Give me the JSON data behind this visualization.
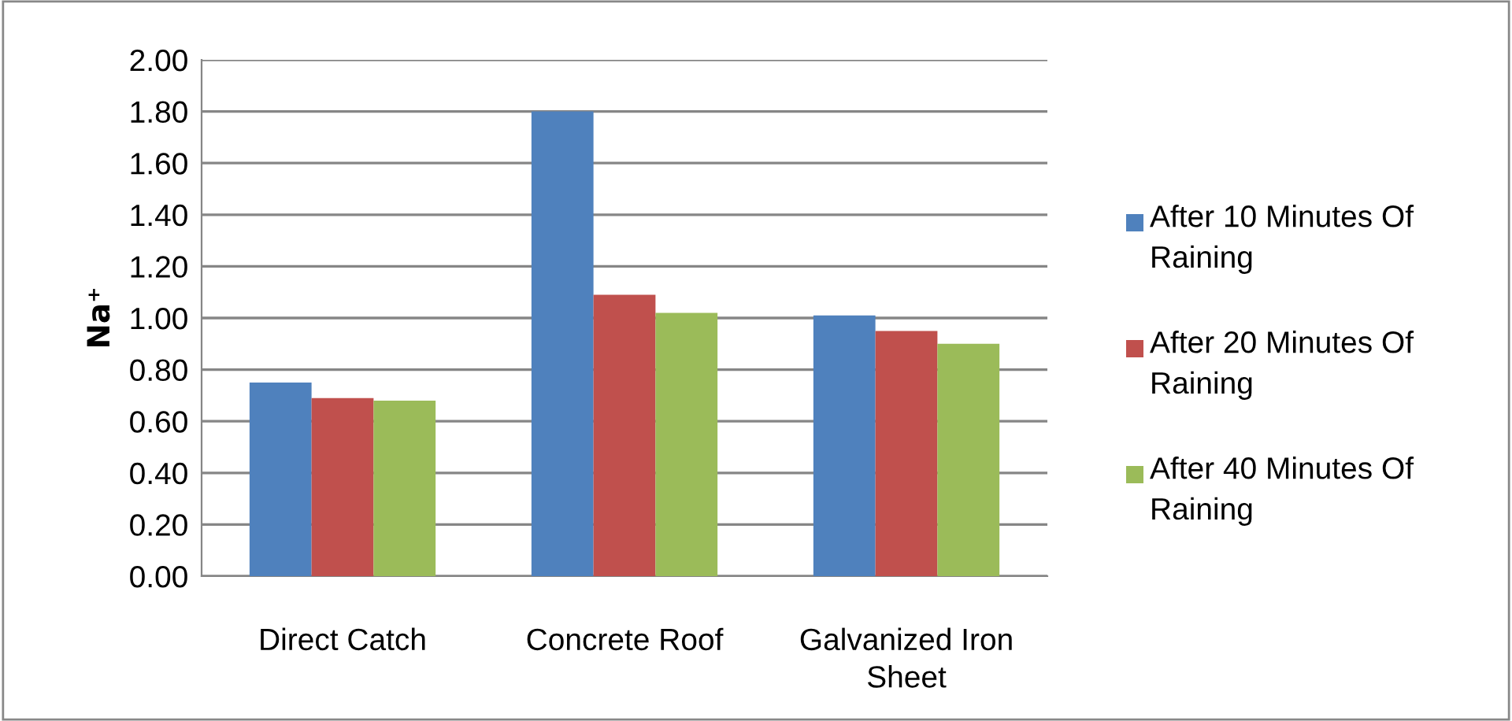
{
  "chart_data": {
    "type": "bar",
    "ylabel": "Na⁺",
    "categories": [
      "Direct Catch",
      "Concrete Roof",
      "Galvanized Iron Sheet"
    ],
    "series": [
      {
        "name": "After 10 Minutes Of Raining",
        "color": "#4f81bd",
        "values": [
          0.75,
          1.8,
          1.01
        ]
      },
      {
        "name": "After 20 Minutes Of Raining",
        "color": "#c0504d",
        "values": [
          0.69,
          1.09,
          0.95
        ]
      },
      {
        "name": "After 40 Minutes Of Raining",
        "color": "#9bbb59",
        "values": [
          0.68,
          1.02,
          0.9
        ]
      }
    ],
    "ylim": [
      0,
      2
    ],
    "yticks": [
      {
        "value": 0,
        "label": "0.00"
      },
      {
        "value": 0.2,
        "label": "0.20"
      },
      {
        "value": 0.4,
        "label": "0.40"
      },
      {
        "value": 0.6,
        "label": "0.60"
      },
      {
        "value": 0.8,
        "label": "0.80"
      },
      {
        "value": 1.0,
        "label": "1.00"
      },
      {
        "value": 1.2,
        "label": "1.20"
      },
      {
        "value": 1.4,
        "label": "1.40"
      },
      {
        "value": 1.6,
        "label": "1.60"
      },
      {
        "value": 1.8,
        "label": "1.80"
      },
      {
        "value": 2.0,
        "label": "2.00"
      }
    ],
    "grid": "y",
    "legend": "right"
  }
}
